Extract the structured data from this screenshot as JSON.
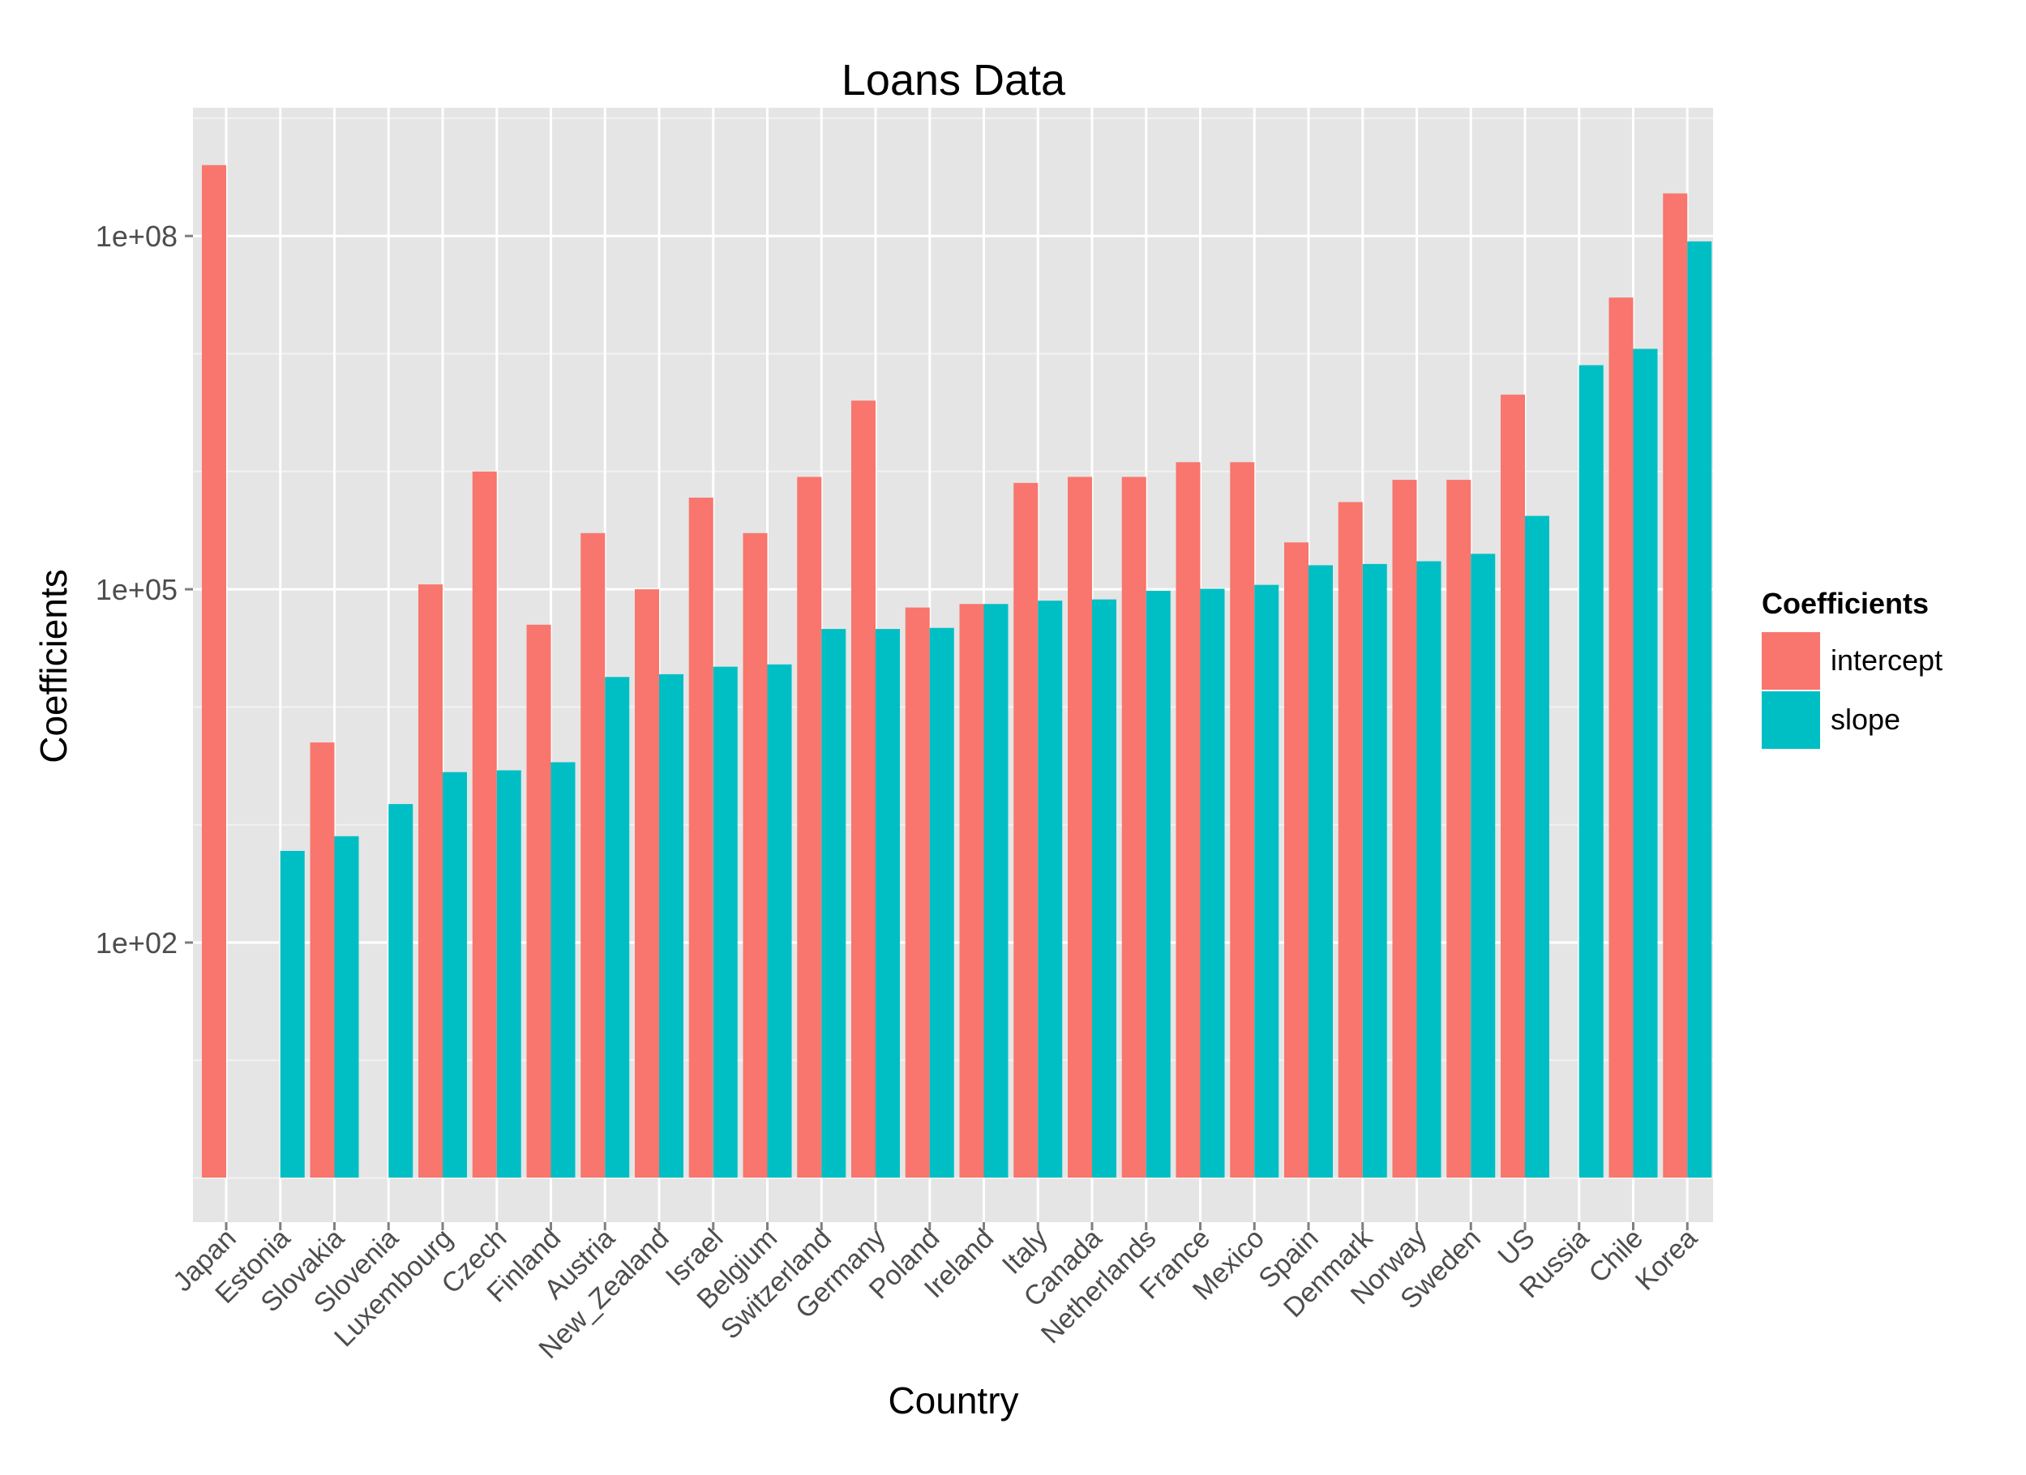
{
  "chart_data": {
    "type": "bar",
    "title": "Loans Data",
    "xlabel": "Country",
    "ylabel": "Coefficients",
    "y_scale": "log10",
    "ylim": [
      0.5,
      1000000000
    ],
    "y_ticks": [
      {
        "value": 100,
        "label": "1e+02"
      },
      {
        "value": 100000,
        "label": "1e+05"
      },
      {
        "value": 100000000,
        "label": "1e+08"
      }
    ],
    "grid": true,
    "legend_position": "right",
    "legend_title": "Coefficients",
    "categories": [
      "Japan",
      "Estonia",
      "Slovakia",
      "Slovenia",
      "Luxembourg",
      "Czech",
      "Finland",
      "Austria",
      "New_Zealand",
      "Israel",
      "Belgium",
      "Switzerland",
      "Germany",
      "Poland",
      "Ireland",
      "Italy",
      "Canada",
      "Netherlands",
      "France",
      "Mexico",
      "Spain",
      "Denmark",
      "Norway",
      "Sweden",
      "US",
      "Russia",
      "Chile",
      "Korea"
    ],
    "series": [
      {
        "name": "intercept",
        "color": "#F8766D",
        "values": [
          400000000,
          null,
          5000,
          null,
          110000,
          1000000,
          50000,
          300000,
          100000,
          600000,
          300000,
          900000,
          4000000,
          70000,
          75000,
          800000,
          900000,
          900000,
          1200000,
          1200000,
          250000,
          550000,
          850000,
          850000,
          4500000,
          null,
          30000000,
          230000000
        ]
      },
      {
        "name": "slope",
        "color": "#00BFC4",
        "values": [
          null,
          600,
          800,
          1500,
          2800,
          2900,
          3400,
          18000,
          19000,
          22000,
          23000,
          46000,
          46000,
          47000,
          75000,
          80000,
          82000,
          97000,
          101000,
          109000,
          160000,
          164000,
          173000,
          200000,
          420000,
          8000000,
          11000000,
          90000000
        ]
      }
    ]
  }
}
